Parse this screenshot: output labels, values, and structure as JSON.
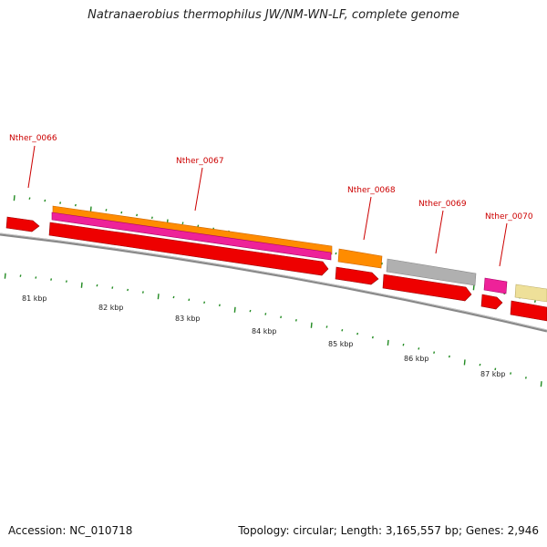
{
  "title": "Natranaerobius thermophilus JW/NM-WN-LF, complete genome",
  "footer": {
    "accession": "Accession: NC_010718",
    "stats": "Topology: circular; Length: 3,165,557 bp; Genes: 2,946"
  },
  "gene_labels": [
    "Nther_0066",
    "Nther_0067",
    "Nther_0068",
    "Nther_0069",
    "Nther_0070"
  ],
  "kbp_labels": [
    "81 kbp",
    "82 kbp",
    "83 kbp",
    "84 kbp",
    "85 kbp",
    "86 kbp",
    "87 kbp"
  ],
  "colors": {
    "cds": "#ee0000",
    "gene_orange": "#ff8c00",
    "gene_magenta": "#ee2299",
    "gene_grey": "#b0b0b0",
    "gene_yellow": "#eee099",
    "backbone": "#888888",
    "ticks": "#228b22",
    "label": "#cc0000"
  }
}
